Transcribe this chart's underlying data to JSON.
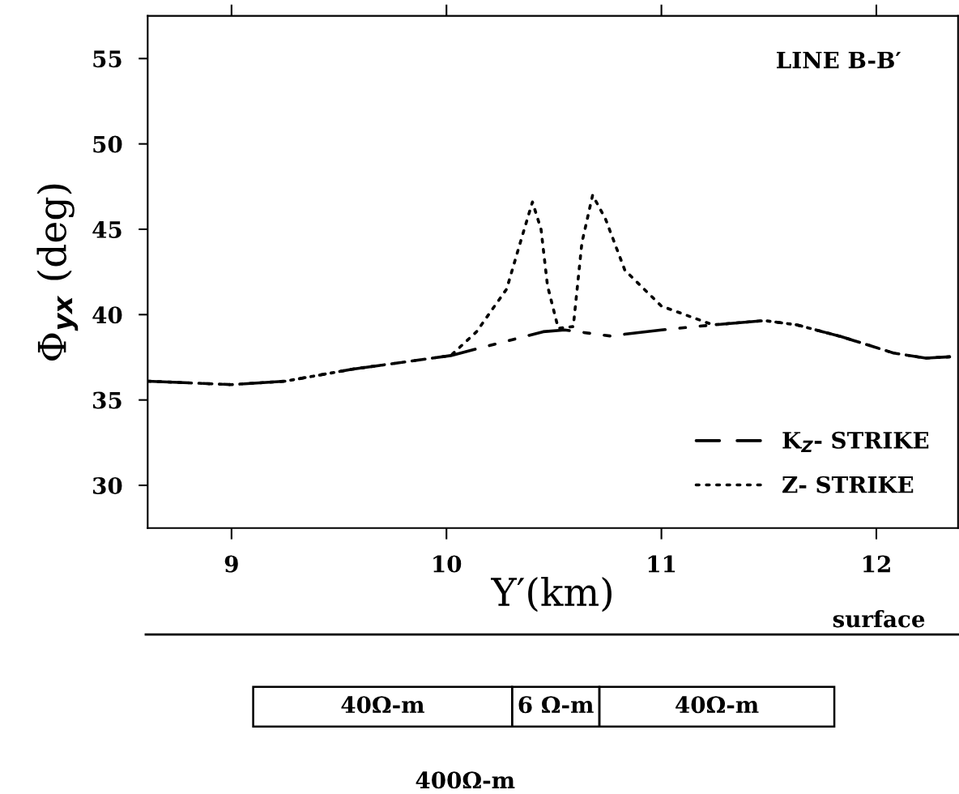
{
  "chart_data": {
    "type": "line",
    "title": "LINE B-B′",
    "xlabel": "Y′(km)",
    "ylabel": "Φ$_{yx}$ (deg)",
    "xlim": [
      8.61,
      12.38
    ],
    "xticks": [
      9,
      10,
      11,
      12
    ],
    "ylim": [
      27.5,
      57.5
    ],
    "yticks": [
      30,
      35,
      40,
      45,
      50,
      55
    ],
    "grid": false,
    "legend": "bottom right",
    "marker": "none",
    "series": [
      {
        "name": "K$_{Z}$- STRIKE",
        "color": "#000000",
        "line_style": "dashed",
        "x": [
          8.61,
          9.0,
          9.25,
          9.56,
          10.02,
          10.45,
          10.55,
          10.76,
          11.0,
          11.24,
          11.48,
          11.63,
          11.84,
          12.08,
          12.23,
          12.37
        ],
        "values": [
          36.1,
          35.9,
          36.1,
          36.8,
          37.6,
          39.0,
          39.1,
          38.75,
          39.1,
          39.4,
          39.65,
          39.4,
          38.7,
          37.75,
          37.45,
          37.55
        ]
      },
      {
        "name": "Z- STRIKE",
        "color": "#000000",
        "line_style": "dotted",
        "x": [
          8.61,
          9.0,
          9.25,
          9.56,
          10.02,
          10.14,
          10.28,
          10.35,
          10.4,
          10.44,
          10.47,
          10.52,
          10.59,
          10.63,
          10.68,
          10.74,
          10.83,
          11.0,
          11.24,
          11.48,
          11.63,
          11.84,
          12.08,
          12.23,
          12.37
        ],
        "values": [
          36.1,
          35.9,
          36.1,
          36.8,
          37.6,
          39.0,
          41.5,
          44.5,
          46.6,
          45.0,
          41.7,
          39.2,
          39.3,
          44.2,
          47.0,
          45.6,
          42.6,
          40.5,
          39.4,
          39.65,
          39.4,
          38.7,
          37.75,
          37.45,
          37.55
        ]
      }
    ],
    "annotations": [
      "surface",
      "40Ω-m",
      "6 Ω-m",
      "40Ω-m",
      "400Ω-m"
    ]
  }
}
